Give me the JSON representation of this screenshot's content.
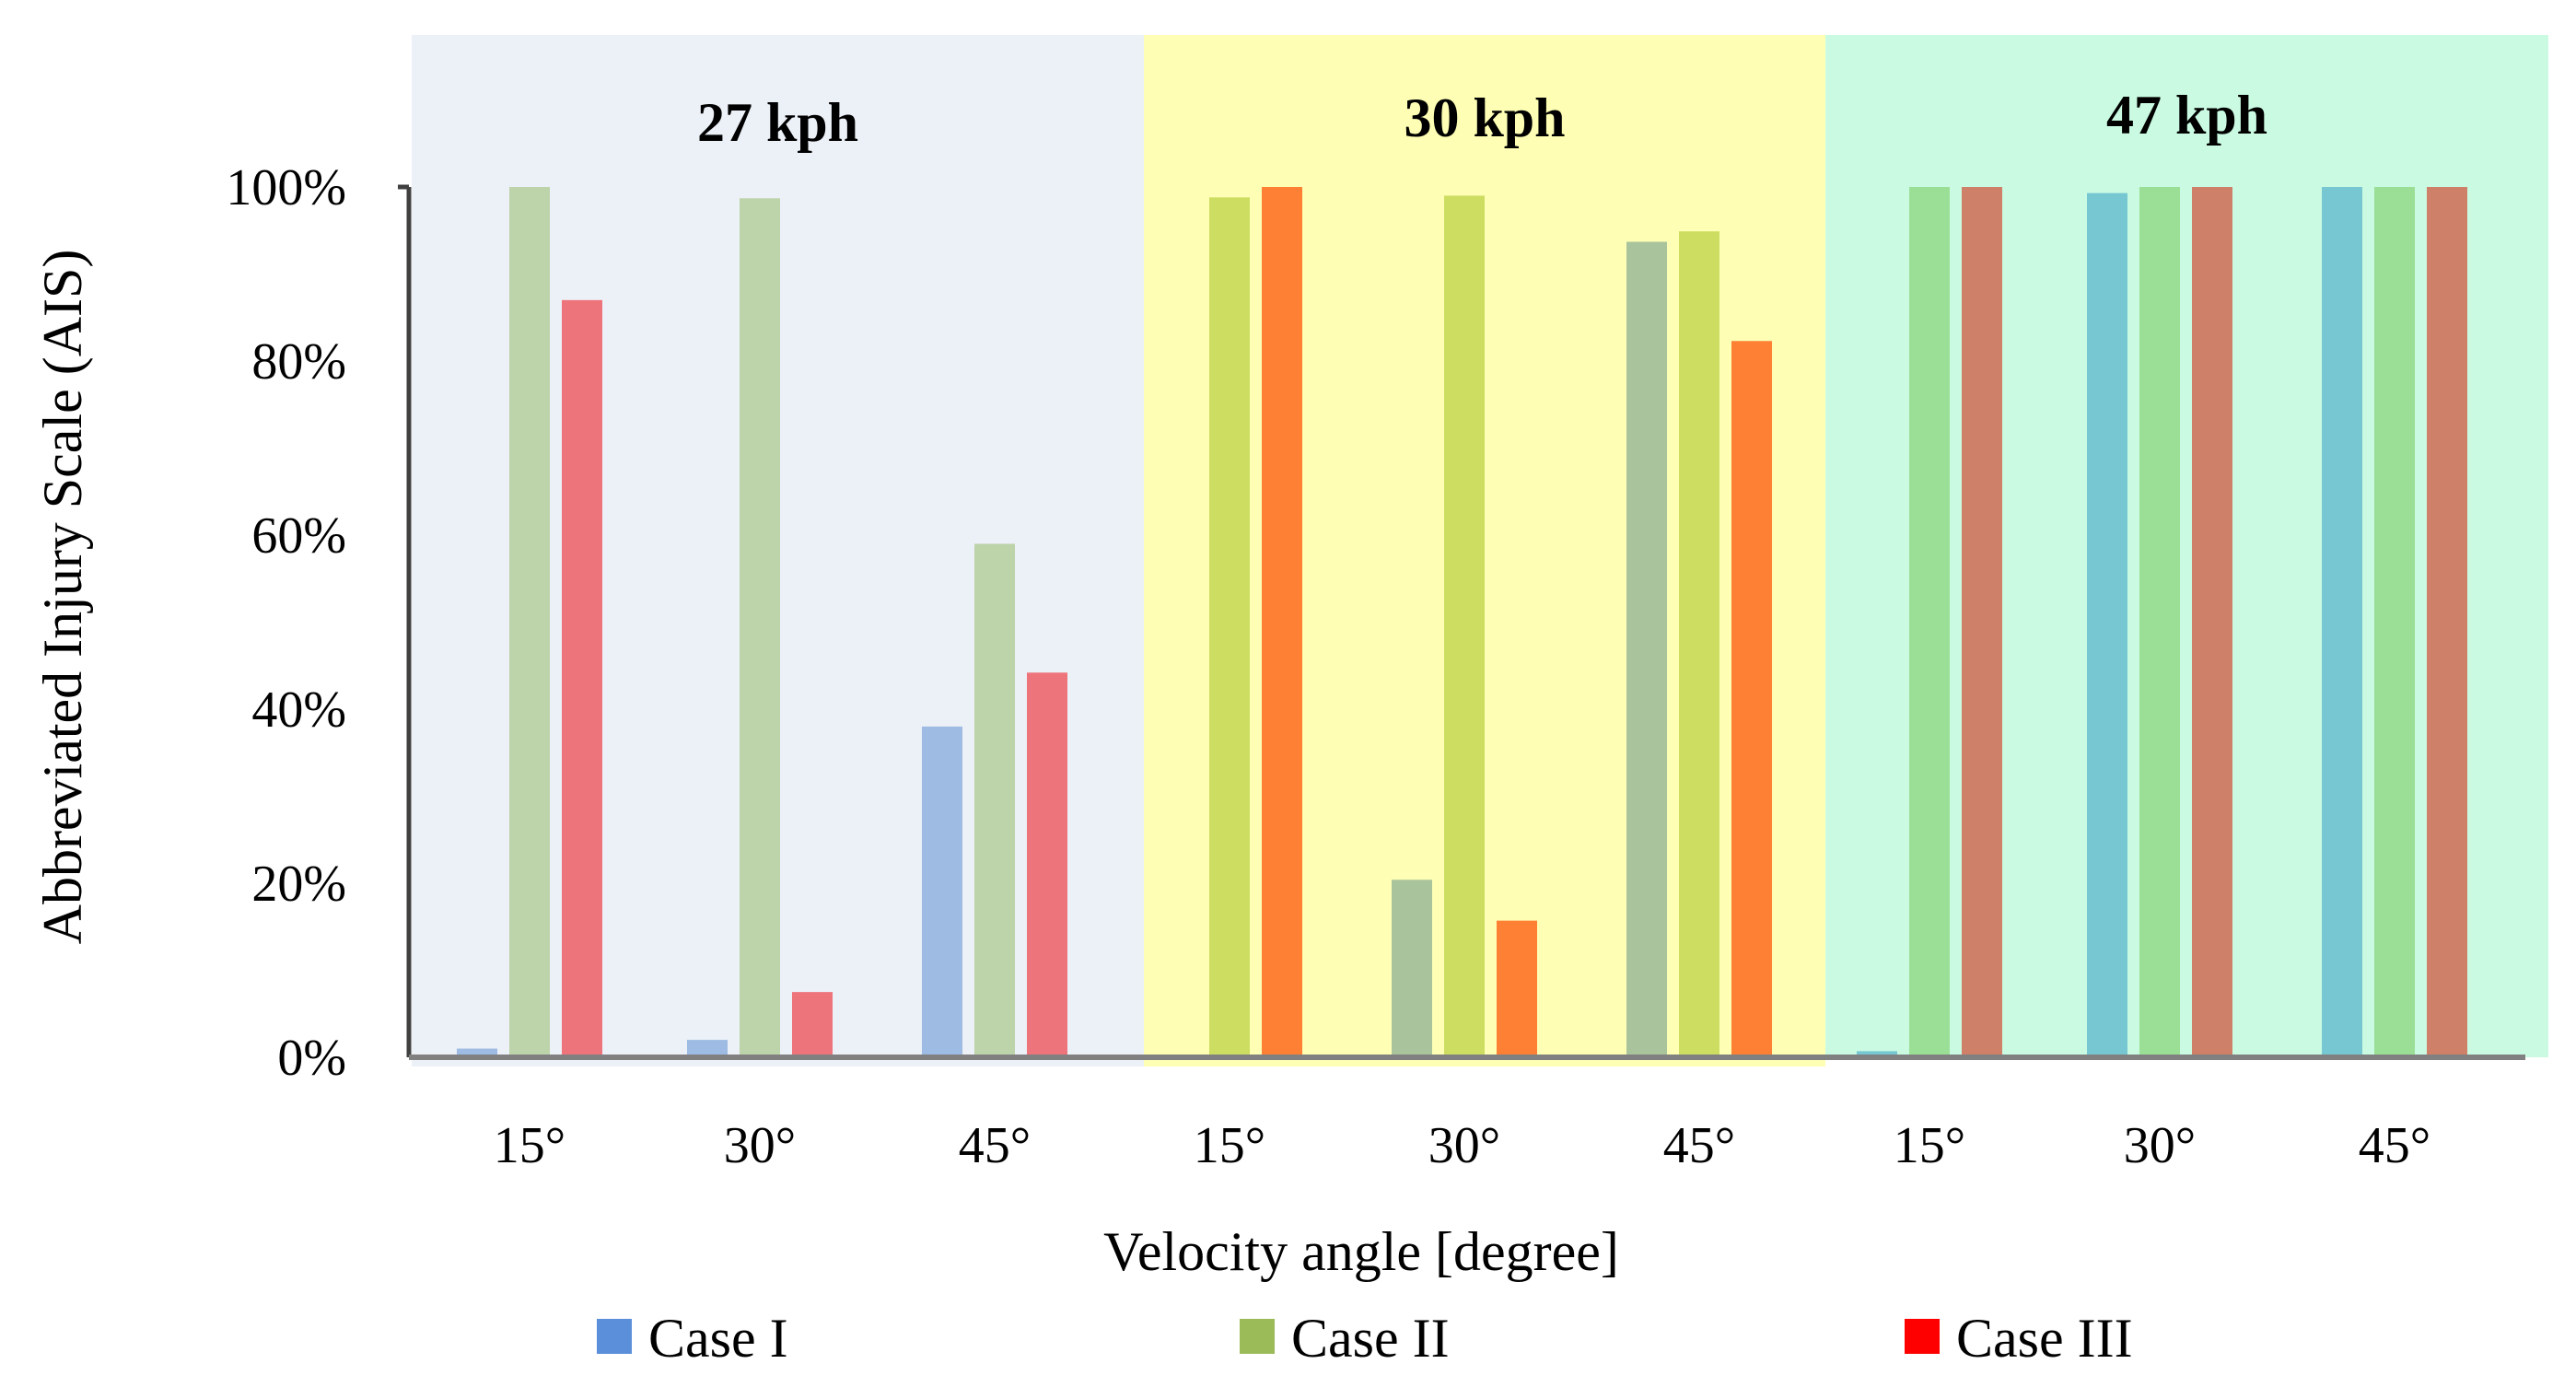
{
  "chart_data": {
    "type": "bar",
    "title": "",
    "xlabel": "Velocity angle [degree]",
    "ylabel": "Abbreviated Injury Scale (AIS)",
    "ylim": [
      0,
      100
    ],
    "yticks": [
      "0%",
      "20%",
      "40%",
      "60%",
      "80%",
      "100%"
    ],
    "legend_position": "bottom",
    "legend": [
      {
        "name": "Case I",
        "color": "#5B8FD9"
      },
      {
        "name": "Case II",
        "color": "#9BBB59"
      },
      {
        "name": "Case III",
        "color": "#FF0000"
      }
    ],
    "panels": [
      {
        "title": "27 kph",
        "background": "#ECF0F7",
        "colors": [
          "#9DBBE3",
          "#BDD3A9",
          "#EE747B"
        ],
        "categories": [
          "15°",
          "30°",
          "45°"
        ],
        "series": [
          {
            "name": "Case I",
            "values": [
              1,
              2,
              38
            ]
          },
          {
            "name": "Case II",
            "values": [
              100,
              98.7,
              59
            ]
          },
          {
            "name": "Case III",
            "values": [
              87,
              7.5,
              44.2
            ]
          }
        ]
      },
      {
        "title": "30 kph",
        "background": "#FEFFB4",
        "colors": [
          "#A9C49C",
          "#CCDD62",
          "#FE8035"
        ],
        "categories": [
          "15°",
          "30°",
          "45°"
        ],
        "series": [
          {
            "name": "Case I",
            "values": [
              0,
              20.4,
              93.7
            ]
          },
          {
            "name": "Case II",
            "values": [
              98.8,
              99,
              94.9
            ]
          },
          {
            "name": "Case III",
            "values": [
              100,
              15.7,
              82.3
            ]
          }
        ]
      },
      {
        "title": "47 kph",
        "background": "#CAFBE2",
        "colors": [
          "#76C7D1",
          "#9BDE95",
          "#CE8068"
        ],
        "categories": [
          "15°",
          "30°",
          "45°"
        ],
        "series": [
          {
            "name": "Case I",
            "values": [
              0.7,
              99.3,
              100
            ]
          },
          {
            "name": "Case II",
            "values": [
              100,
              100,
              100
            ]
          },
          {
            "name": "Case III",
            "values": [
              100,
              100,
              100
            ]
          }
        ]
      }
    ]
  }
}
